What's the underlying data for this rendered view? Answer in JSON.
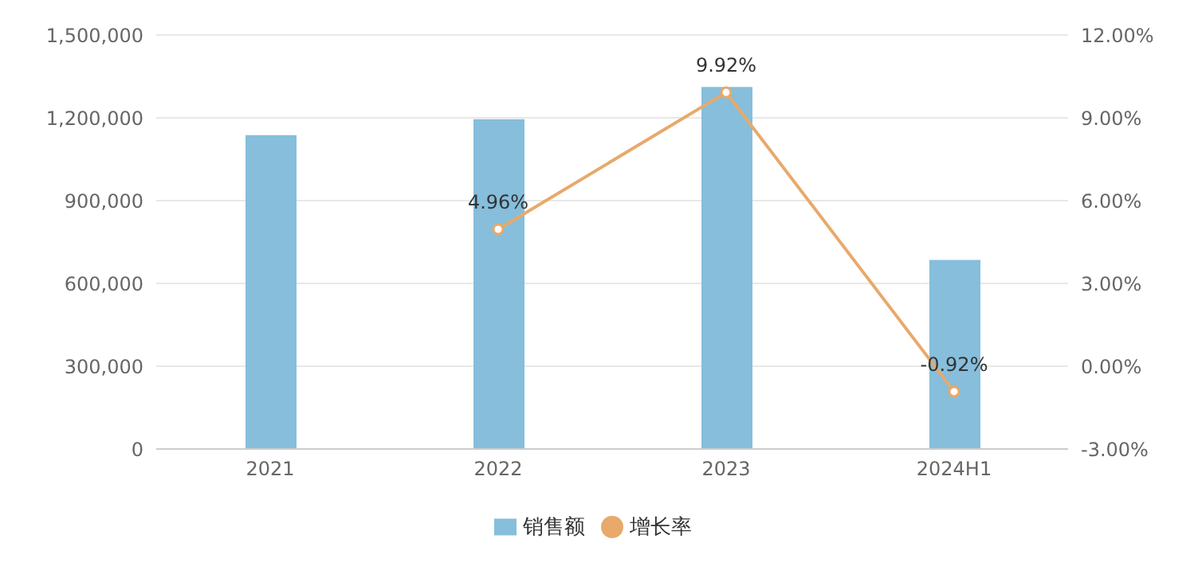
{
  "chart_data": {
    "type": "bar",
    "categories": [
      "2021",
      "2022",
      "2023",
      "2024H1"
    ],
    "series": [
      {
        "name": "销售额",
        "color": "#86bedb",
        "values": [
          1137000,
          1195000,
          1312000,
          685000
        ]
      },
      {
        "name": "增长率",
        "type": "line",
        "axis": "y2",
        "color": "#e8a96a",
        "marker": "circle",
        "values": [
          null,
          4.96,
          9.92,
          -0.92
        ],
        "value_labels": [
          null,
          "4.96%",
          "9.92%",
          "-0.92%"
        ]
      }
    ],
    "ylim": [
      0,
      1500000
    ],
    "yticks": [
      {
        "value": 0,
        "label": "0"
      },
      {
        "value": 300000,
        "label": "300,000"
      },
      {
        "value": 600000,
        "label": "600,000"
      },
      {
        "value": 900000,
        "label": "900,000"
      },
      {
        "value": 1200000,
        "label": "1,200,000"
      },
      {
        "value": 1500000,
        "label": "1,500,000"
      }
    ],
    "y2lim": [
      -3,
      12
    ],
    "y2ticks": [
      {
        "value": -3,
        "label": "-3.00%"
      },
      {
        "value": 0,
        "label": "0.00%"
      },
      {
        "value": 3,
        "label": "3.00%"
      },
      {
        "value": 6,
        "label": "6.00%"
      },
      {
        "value": 9,
        "label": "9.00%"
      },
      {
        "value": 12,
        "label": "12.00%"
      }
    ],
    "grid": "y",
    "legend": "bottom"
  }
}
